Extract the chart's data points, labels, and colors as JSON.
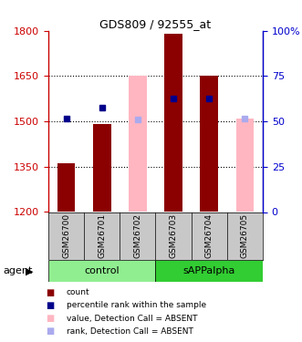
{
  "title": "GDS809 / 92555_at",
  "samples": [
    "GSM26700",
    "GSM26701",
    "GSM26702",
    "GSM26703",
    "GSM26704",
    "GSM26705"
  ],
  "ylim_left": [
    1200,
    1800
  ],
  "ylim_right": [
    0,
    100
  ],
  "yticks_left": [
    1200,
    1350,
    1500,
    1650,
    1800
  ],
  "yticks_right": [
    0,
    25,
    50,
    75,
    100
  ],
  "yticklabels_right": [
    "0",
    "25",
    "50",
    "75",
    "100%"
  ],
  "red_bar_tops": [
    1360,
    1490,
    null,
    1790,
    1650,
    null
  ],
  "pink_bar_tops": [
    null,
    null,
    1650,
    null,
    null,
    1510
  ],
  "blue_square_y": [
    1510,
    1545,
    null,
    1575,
    1575,
    null
  ],
  "light_blue_square_y": [
    null,
    null,
    1505,
    null,
    null,
    1510
  ],
  "red_bar_color": "#8B0000",
  "pink_bar_color": "#FFB6C1",
  "blue_square_color": "#00008B",
  "light_blue_square_color": "#AAAAEE",
  "bar_width": 0.5,
  "left_axis_color": "#CC0000",
  "right_axis_color": "#0000CC",
  "ctrl_color": "#90EE90",
  "sapp_color": "#32CD32",
  "label_bg_color": "#C8C8C8",
  "agent_label": "agent"
}
